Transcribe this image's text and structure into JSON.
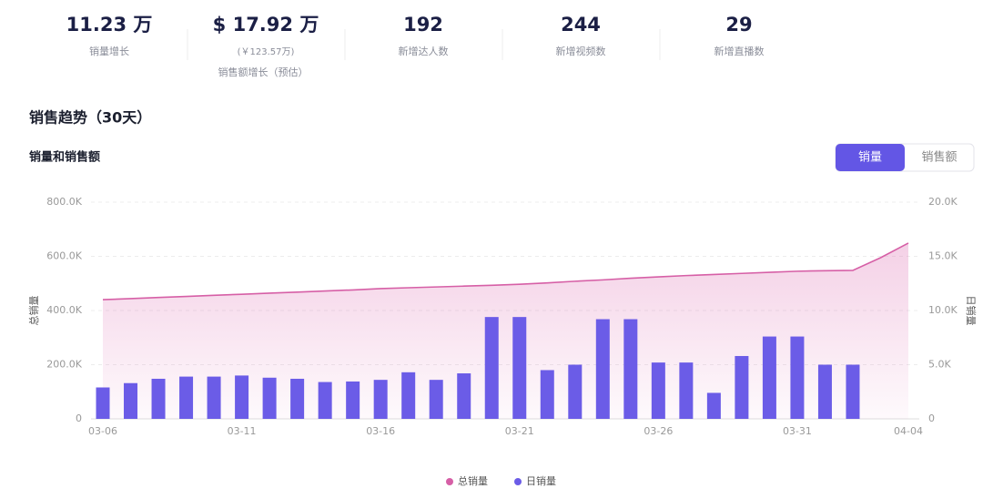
{
  "stats": [
    {
      "value": "11.23 万",
      "label": "销量增长"
    },
    {
      "value": "$ 17.92 万",
      "sub": "(￥123.57万)",
      "label": "销售额增长（预估）"
    },
    {
      "value": "192",
      "label": "新增达人数"
    },
    {
      "value": "244",
      "label": "新增视频数"
    },
    {
      "value": "29",
      "label": "新增直播数"
    }
  ],
  "section_title": "销售趋势（30天）",
  "tabs": [
    "销量",
    "销售额"
  ],
  "chart_data": {
    "type": "bar",
    "title": "销量和销售额",
    "y_label": "总销量",
    "y2_label": "日销量",
    "categories": [
      "03-06",
      null,
      null,
      null,
      null,
      "03-11",
      null,
      null,
      null,
      null,
      "03-16",
      null,
      null,
      null,
      null,
      "03-21",
      null,
      null,
      null,
      null,
      "03-26",
      null,
      null,
      null,
      null,
      "03-31",
      null,
      null,
      null,
      "04-04"
    ],
    "series": [
      {
        "name": "总销量",
        "type": "line",
        "color": "#d65fa6",
        "axis": "y",
        "values": [
          440000,
          444000,
          448000,
          452000,
          456000,
          460000,
          464000,
          468000,
          472000,
          476000,
          481000,
          484000,
          487000,
          490000,
          493000,
          497000,
          502000,
          508000,
          513000,
          519000,
          524000,
          529000,
          533000,
          537000,
          541000,
          545000,
          547000,
          548000,
          595000,
          649000
        ]
      },
      {
        "name": "日销量",
        "type": "bar",
        "color": "#6b5ce7",
        "axis": "y2",
        "values": [
          2900,
          3300,
          3700,
          3900,
          3900,
          4000,
          3800,
          3700,
          3400,
          3450,
          3600,
          4300,
          3600,
          4200,
          9400,
          9400,
          4500,
          5000,
          9200,
          9200,
          5200,
          5200,
          2400,
          5800,
          7600,
          7600,
          5000,
          5000,
          null,
          null
        ]
      }
    ],
    "ylim": [
      0,
      800000
    ],
    "yticks": [
      0,
      {
        "value": 200000,
        "label": "200.0K"
      },
      {
        "value": 400000,
        "label": "400.0K"
      },
      {
        "value": 600000,
        "label": "600.0K"
      },
      {
        "value": 800000,
        "label": "800.0K"
      }
    ],
    "y2lim": [
      0,
      20000
    ],
    "y2ticks": [
      0,
      {
        "value": 5000,
        "label": "5.0K"
      },
      {
        "value": 10000,
        "label": "10.0K"
      },
      {
        "value": 15000,
        "label": "15.0K"
      },
      {
        "value": 20000,
        "label": "20.0K"
      }
    ],
    "grid": true
  }
}
